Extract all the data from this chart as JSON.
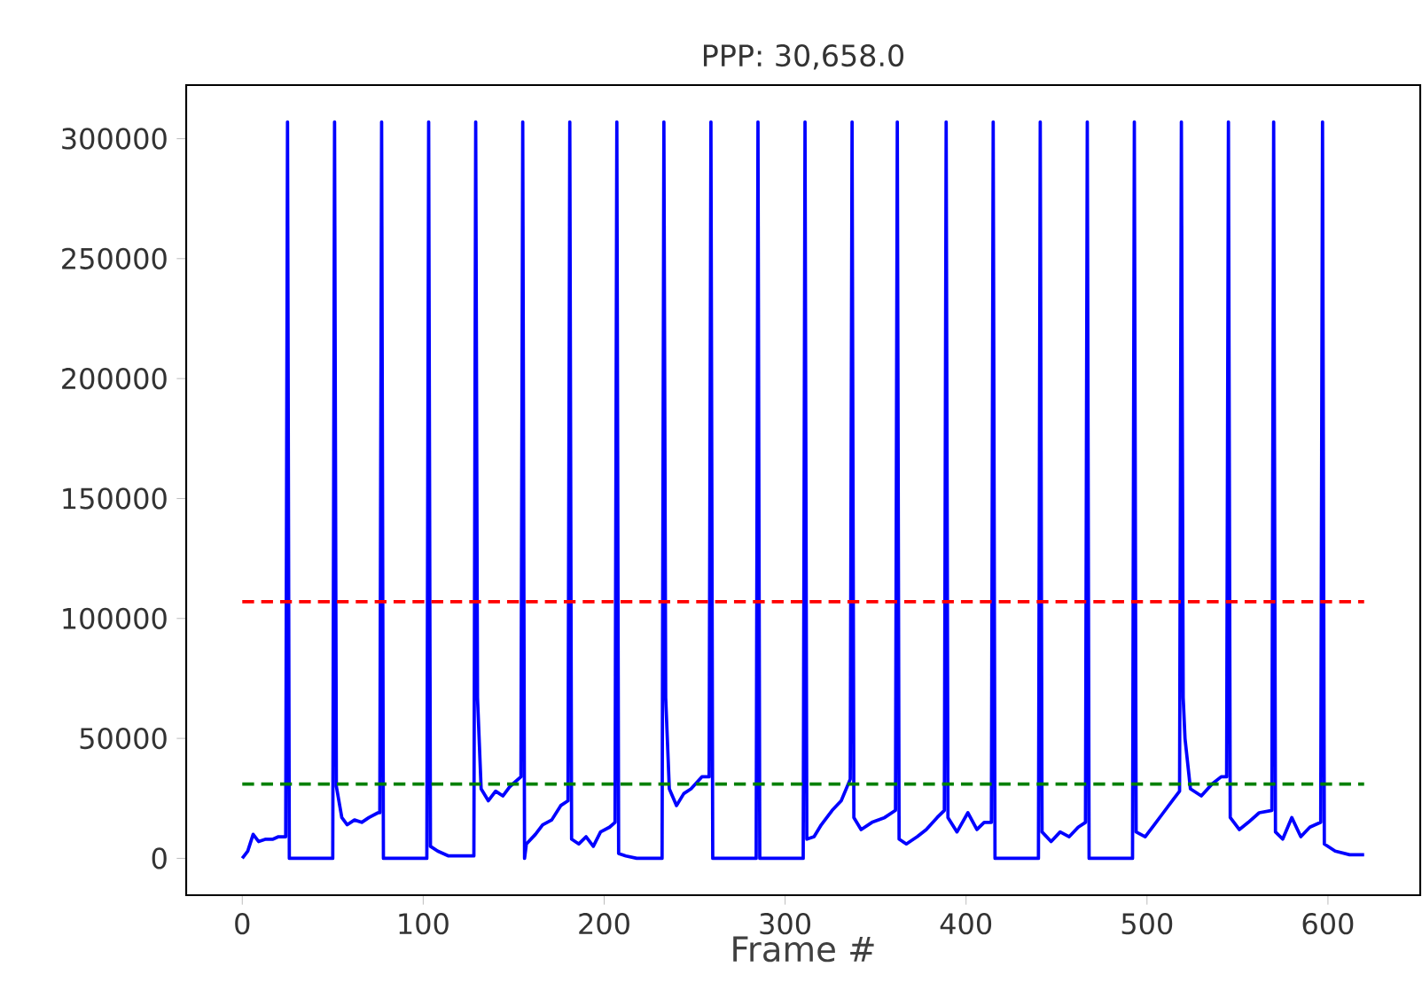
{
  "chart_data": {
    "type": "line",
    "title": "PPP: 30,658.0",
    "xlabel": "Frame #",
    "xlim": [
      -31,
      651
    ],
    "ylim": [
      -15350,
      322350
    ],
    "xticks": [
      0,
      100,
      200,
      300,
      400,
      500,
      600
    ],
    "yticks": [
      0,
      50000,
      100000,
      150000,
      200000,
      250000,
      300000
    ],
    "grid": false,
    "marker": "none",
    "line_style": "solid",
    "series": [
      {
        "color": "#0000ff",
        "x": [
          0,
          3,
          6,
          9,
          13,
          17,
          20,
          24,
          25,
          26,
          50,
          51,
          52,
          55,
          58,
          62,
          66,
          70,
          75,
          76,
          77,
          78,
          102,
          103,
          104,
          108,
          114,
          128,
          129,
          130,
          132,
          136,
          140,
          144,
          148,
          154,
          155,
          156,
          157,
          162,
          166,
          171,
          176,
          180,
          181,
          182,
          186,
          190,
          194,
          198,
          203,
          206,
          207,
          208,
          212,
          218,
          232,
          233,
          234,
          236,
          240,
          244,
          248,
          254,
          258,
          259,
          260,
          284,
          285,
          286,
          310,
          311,
          312,
          316,
          320,
          326,
          331,
          336,
          337,
          338,
          342,
          348,
          355,
          361,
          362,
          363,
          367,
          373,
          378,
          384,
          388,
          389,
          390,
          395,
          401,
          406,
          410,
          414,
          415,
          416,
          440,
          441,
          442,
          447,
          452,
          457,
          462,
          466,
          467,
          468,
          492,
          493,
          494,
          499,
          504,
          509,
          514,
          518,
          519,
          520,
          521,
          524,
          530,
          536,
          541,
          544,
          545,
          546,
          551,
          556,
          562,
          569,
          570,
          571,
          575,
          580,
          585,
          590,
          596,
          597,
          598,
          604,
          612,
          620
        ],
        "values": [
          0,
          3000,
          10000,
          7000,
          8000,
          8000,
          9000,
          9000,
          307000,
          0,
          0,
          307000,
          30000,
          17000,
          14000,
          16000,
          15000,
          17000,
          19000,
          19000,
          307000,
          0,
          0,
          307000,
          5000,
          3000,
          1000,
          1000,
          307000,
          67000,
          29000,
          24000,
          28000,
          26000,
          30000,
          34000,
          307000,
          0,
          6000,
          10000,
          14000,
          16000,
          22000,
          24000,
          307000,
          8000,
          6000,
          9000,
          5000,
          11000,
          13000,
          15000,
          307000,
          2000,
          1000,
          0,
          0,
          307000,
          67000,
          29000,
          22000,
          27000,
          29000,
          34000,
          34000,
          307000,
          0,
          0,
          307000,
          0,
          0,
          307000,
          8000,
          9000,
          14000,
          20000,
          24000,
          33000,
          307000,
          17000,
          12000,
          15000,
          17000,
          20000,
          307000,
          8000,
          6000,
          9000,
          12000,
          17000,
          20000,
          307000,
          17000,
          11000,
          19000,
          12000,
          15000,
          15000,
          307000,
          0,
          0,
          307000,
          11000,
          7000,
          11000,
          9000,
          13000,
          15000,
          307000,
          0,
          0,
          307000,
          11000,
          9000,
          14000,
          19000,
          24000,
          28000,
          307000,
          67000,
          50000,
          29000,
          26000,
          31000,
          34000,
          34000,
          307000,
          17000,
          12000,
          15000,
          19000,
          20000,
          307000,
          11000,
          8000,
          17000,
          9000,
          13000,
          15000,
          307000,
          6000,
          3000,
          1500,
          1500
        ]
      }
    ],
    "ref_lines": [
      {
        "axis": "y",
        "value": 107000,
        "color": "#ff0000",
        "line_style": "dashed"
      },
      {
        "axis": "y",
        "value": 31000,
        "color": "#008000",
        "line_style": "dashed"
      }
    ]
  }
}
